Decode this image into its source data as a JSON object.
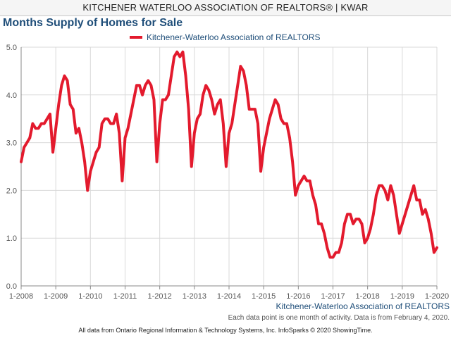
{
  "header": {
    "banner": "KITCHENER WATERLOO ASSOCIATION OF REALTORS® | KWAR"
  },
  "chart_data": {
    "type": "line",
    "title": "Months Supply of Homes for Sale",
    "legend_position": "top-center",
    "grid": true,
    "ylim": [
      0,
      5
    ],
    "y_ticks": [
      "0.0",
      "1.0",
      "2.0",
      "3.0",
      "4.0",
      "5.0"
    ],
    "x_ticks": [
      "1-2008",
      "1-2009",
      "1-2010",
      "1-2011",
      "1-2012",
      "1-2013",
      "1-2014",
      "1-2015",
      "1-2016",
      "1-2017",
      "1-2018",
      "1-2019",
      "1-2020"
    ],
    "x_start": "1-2008",
    "series": [
      {
        "name": "Kitchener-Waterloo Association of REALTORS",
        "color": "#e31a2d",
        "values": [
          2.6,
          2.9,
          3.0,
          3.1,
          3.4,
          3.3,
          3.3,
          3.4,
          3.4,
          3.5,
          3.6,
          2.8,
          3.3,
          3.8,
          4.2,
          4.4,
          4.3,
          3.8,
          3.7,
          3.2,
          3.3,
          3.0,
          2.6,
          2.0,
          2.4,
          2.6,
          2.8,
          2.9,
          3.4,
          3.5,
          3.5,
          3.4,
          3.4,
          3.6,
          3.2,
          2.2,
          3.1,
          3.3,
          3.6,
          3.9,
          4.2,
          4.2,
          4.0,
          4.2,
          4.3,
          4.2,
          3.9,
          2.6,
          3.4,
          3.9,
          3.9,
          4.0,
          4.4,
          4.8,
          4.9,
          4.8,
          4.9,
          4.4,
          3.7,
          2.5,
          3.2,
          3.5,
          3.6,
          4.0,
          4.2,
          4.1,
          3.9,
          3.6,
          3.8,
          3.9,
          3.4,
          2.5,
          3.2,
          3.4,
          3.8,
          4.2,
          4.6,
          4.5,
          4.2,
          3.7,
          3.7,
          3.7,
          3.4,
          2.4,
          2.9,
          3.2,
          3.5,
          3.7,
          3.9,
          3.8,
          3.5,
          3.4,
          3.4,
          3.1,
          2.6,
          1.9,
          2.1,
          2.2,
          2.3,
          2.2,
          2.2,
          1.9,
          1.7,
          1.3,
          1.3,
          1.1,
          0.8,
          0.6,
          0.6,
          0.7,
          0.7,
          0.9,
          1.3,
          1.5,
          1.5,
          1.3,
          1.4,
          1.4,
          1.3,
          0.9,
          1.0,
          1.2,
          1.5,
          1.9,
          2.1,
          2.1,
          2.0,
          1.8,
          2.1,
          1.9,
          1.5,
          1.1,
          1.3,
          1.5,
          1.7,
          1.9,
          2.1,
          1.8,
          1.8,
          1.5,
          1.6,
          1.4,
          1.1,
          0.7,
          0.8
        ]
      }
    ]
  },
  "source_label": "Kitchener-Waterloo Association of REALTORS",
  "note": "Each data point is one month of activity. Data is from February 4, 2020.",
  "footer": "All data from Ontario Regional Information & Technology Systems, Inc. InfoSparks © 2020 ShowingTime."
}
